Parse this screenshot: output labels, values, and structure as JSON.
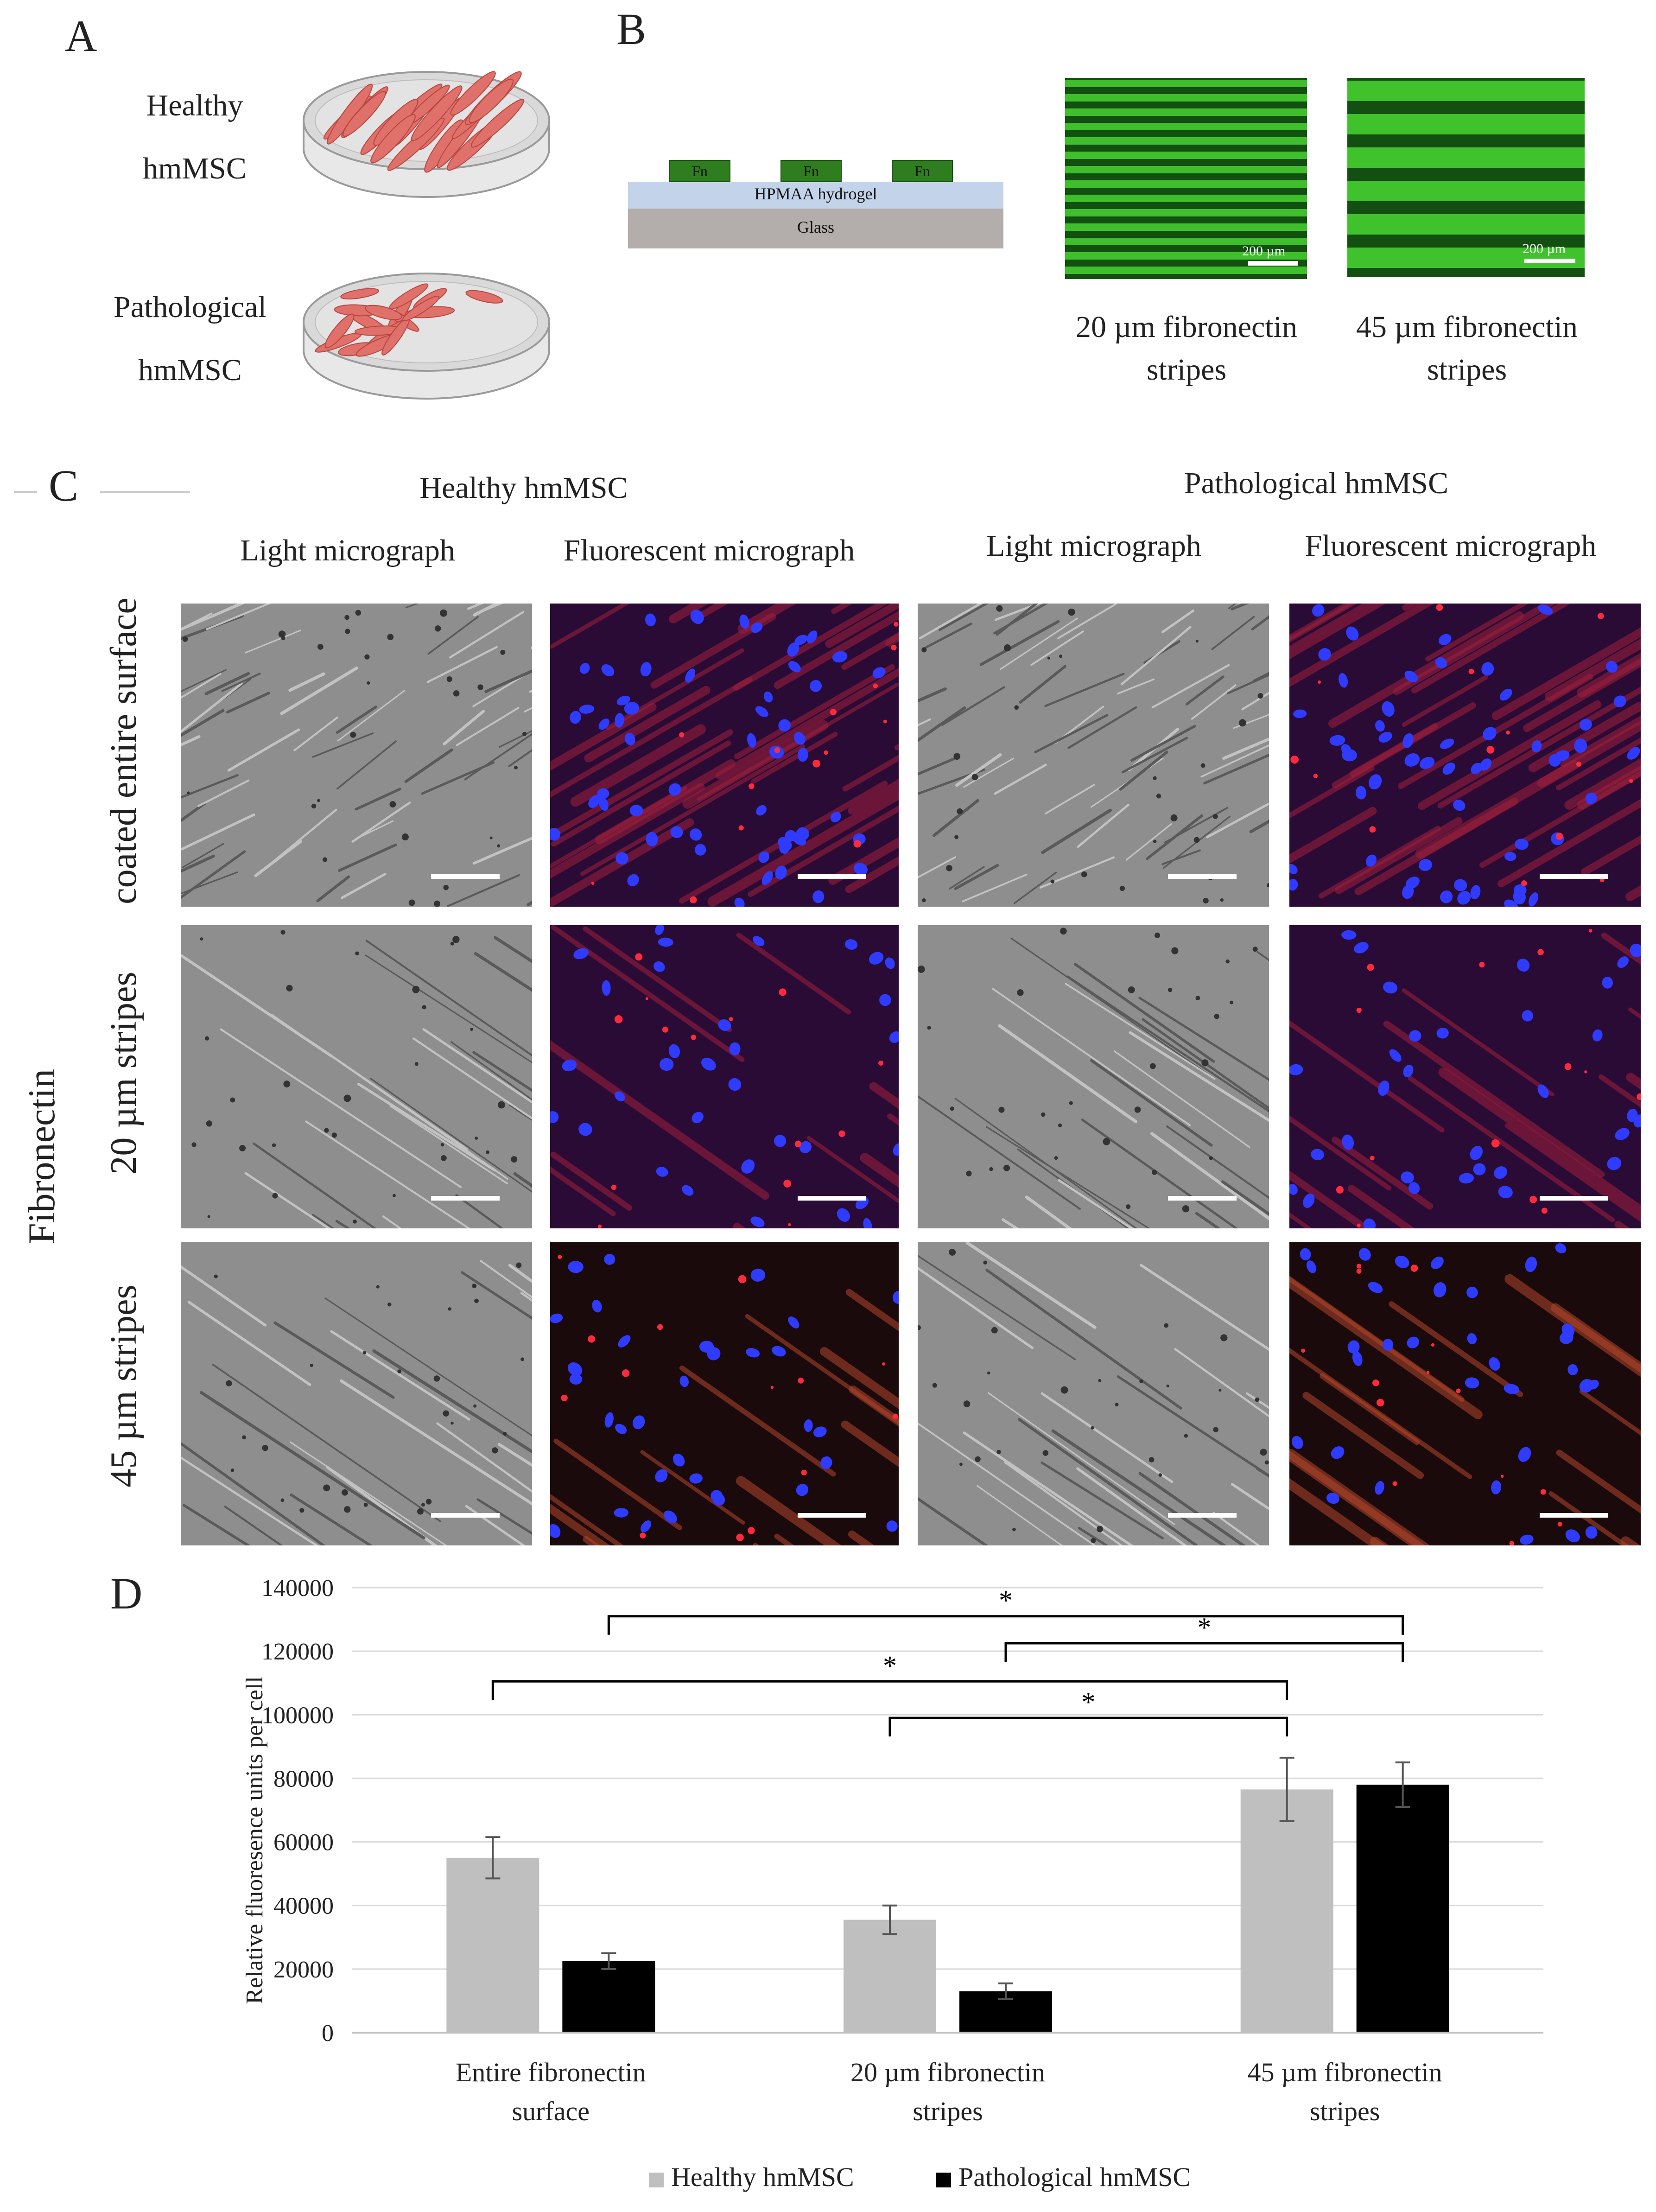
{
  "panels": {
    "a": {
      "letter": "A",
      "healthy_label": [
        "Healthy",
        "hmMSC"
      ],
      "patho_label": [
        "Pathological",
        "hmMSC"
      ]
    },
    "b": {
      "letter": "B",
      "schematic": {
        "pad_label": "Fn",
        "hydrogel_label": "HPMAA hydrogel",
        "glass_label": "Glass"
      },
      "image1": {
        "scale": "200 µm",
        "caption": [
          "20 µm fibronectin",
          "stripes"
        ]
      },
      "image2": {
        "scale": "200 µm",
        "caption": [
          "45 µm fibronectin",
          "stripes"
        ]
      }
    },
    "c": {
      "letter": "C",
      "group_healthy": "Healthy hmMSC",
      "group_patho": "Pathological hmMSC",
      "col_light": "Light micrograph",
      "col_fluor": "Fluorescent micrograph",
      "side_label": "Fibronectin",
      "row_labels": [
        "coated entire surface",
        "20 µm stripes",
        "45 µm stripes"
      ]
    },
    "d": {
      "letter": "D"
    }
  },
  "colors": {
    "healthy_bar": "#bfbfbf",
    "patho_bar": "#000000",
    "fn_green": "#2e7d1e",
    "hydrogel": "#c2d3ea",
    "glass": "#b3adab",
    "cell_red": "#e0706a"
  },
  "chart_data": {
    "type": "bar",
    "categories": [
      [
        "Entire fibronectin",
        "surface"
      ],
      [
        "20 µm fibronectin",
        "stripes"
      ],
      [
        "45 µm fibronectin",
        "stripes"
      ]
    ],
    "series": [
      {
        "name": "Healthy hmMSC",
        "values": [
          55000,
          35500,
          76500
        ],
        "errors": [
          6500,
          4500,
          10000
        ]
      },
      {
        "name": "Pathological hmMSC",
        "values": [
          22500,
          13000,
          78000
        ],
        "errors": [
          2500,
          2500,
          7000
        ]
      }
    ],
    "ylabel": "Relative fluoresence units per cell",
    "ylim": [
      0,
      140000
    ],
    "yticks": [
      0,
      20000,
      40000,
      60000,
      80000,
      100000,
      120000,
      140000
    ],
    "ytick_labels": [
      "0",
      "20000",
      "40000",
      "60000",
      "80000",
      "100000",
      "120000",
      "140000"
    ],
    "grid": true,
    "legend": "bottom",
    "significance": [
      {
        "from": [
          0,
          1
        ],
        "to": [
          2,
          1
        ],
        "label": "*"
      },
      {
        "from": [
          1,
          1
        ],
        "to": [
          2,
          1
        ],
        "label": "*"
      },
      {
        "from": [
          0,
          0
        ],
        "to": [
          2,
          0
        ],
        "label": "*"
      },
      {
        "from": [
          1,
          0
        ],
        "to": [
          2,
          0
        ],
        "label": "*"
      }
    ]
  }
}
